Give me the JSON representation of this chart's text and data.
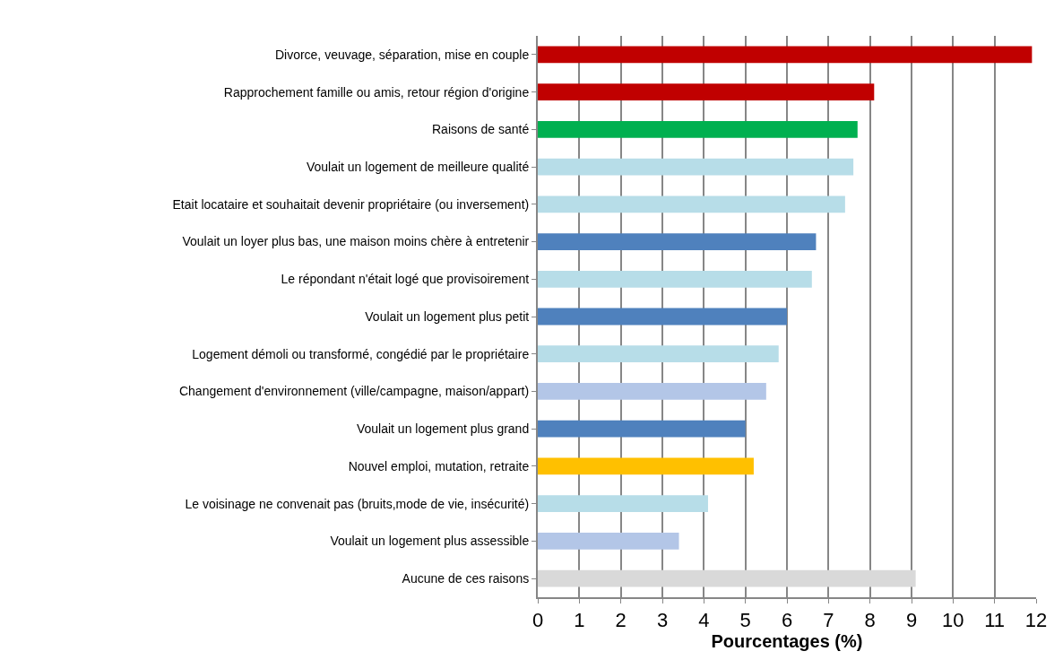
{
  "chart_data": {
    "type": "bar",
    "orientation": "horizontal",
    "xlabel": "Pourcentages (%)",
    "categories": [
      "Divorce, veuvage, séparation, mise en couple",
      "Rapprochement famille ou amis, retour région d'origine",
      "Raisons de santé",
      "Voulait un logement de meilleure qualité",
      "Etait locataire et souhaitait devenir propriétaire (ou inversement)",
      "Voulait un loyer plus bas, une maison moins chère à entretenir",
      "Le répondant n'était logé que provisoirement",
      "Voulait un logement plus petit",
      "Logement démoli ou transformé, congédié par le propriétaire",
      "Changement d'environnement (ville/campagne, maison/appart)",
      "Voulait un logement plus grand",
      "Nouvel emploi, mutation, retraite",
      "Le voisinage ne convenait pas (bruits,mode de vie, insécurité)",
      "Voulait un logement plus assessible",
      "Aucune de ces raisons"
    ],
    "values": [
      11.9,
      8.1,
      7.7,
      7.6,
      7.4,
      6.7,
      6.6,
      6.0,
      5.8,
      5.5,
      5.0,
      5.2,
      4.1,
      3.4,
      9.1
    ],
    "colors": [
      "#c00000",
      "#c00000",
      "#00b050",
      "#b7dde8",
      "#b7dde8",
      "#4f81bd",
      "#b7dde8",
      "#4f81bd",
      "#b7dde8",
      "#b3c6e7",
      "#4f81bd",
      "#ffc000",
      "#b7dde8",
      "#b3c6e7",
      "#d9d9d9"
    ],
    "xlim": [
      0,
      12
    ],
    "xticks": [
      0,
      1,
      2,
      3,
      4,
      5,
      6,
      7,
      8,
      9,
      10,
      11,
      12
    ],
    "grid": "x",
    "legend": false
  }
}
